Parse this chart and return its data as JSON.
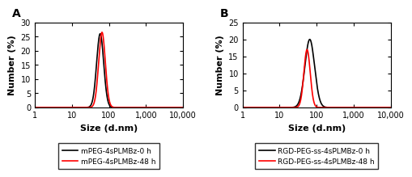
{
  "panel_A": {
    "label": "A",
    "ylabel": "Number (%)",
    "xlabel": "Size (d.nm)",
    "ylim": [
      0,
      30
    ],
    "yticks": [
      0,
      5,
      10,
      15,
      20,
      25,
      30
    ],
    "xlim": [
      1,
      10000
    ],
    "xticks": [
      1,
      10,
      100,
      1000,
      10000
    ],
    "xticklabels": [
      "1",
      "10",
      "100",
      "1,000",
      "10,000"
    ],
    "curves": [
      {
        "label": "mPEG-4sPLMBz-0 h",
        "color": "#000000",
        "peak": 58,
        "peak_val": 26.0,
        "sigma": 0.095,
        "lw": 1.2
      },
      {
        "label": "mPEG-4sPLMBz-48 h",
        "color": "#ff0000",
        "peak": 65,
        "peak_val": 26.5,
        "sigma": 0.09,
        "lw": 1.2
      }
    ]
  },
  "panel_B": {
    "label": "B",
    "ylabel": "Number (%)",
    "xlabel": "Size (d.nm)",
    "ylim": [
      0,
      25
    ],
    "yticks": [
      0,
      5,
      10,
      15,
      20,
      25
    ],
    "xlim": [
      1,
      10000
    ],
    "xticks": [
      1,
      10,
      100,
      1000,
      10000
    ],
    "xticklabels": [
      "1",
      "10",
      "100",
      "1,000",
      "10,000"
    ],
    "curves": [
      {
        "label": "RGD-PEG-ss-4sPLMBz-0 h",
        "color": "#000000",
        "peak": 65,
        "peak_val": 20.0,
        "sigma": 0.13,
        "lw": 1.2
      },
      {
        "label": "RGD-PEG-ss-4sPLMBz-48 h",
        "color": "#ff0000",
        "peak": 55,
        "peak_val": 17.0,
        "sigma": 0.085,
        "lw": 1.2
      }
    ]
  },
  "fig_background": "#ffffff",
  "axes_background": "#ffffff",
  "label_fontsize": 8,
  "tick_fontsize": 7,
  "legend_fontsize": 6.5,
  "panel_label_fontsize": 10
}
